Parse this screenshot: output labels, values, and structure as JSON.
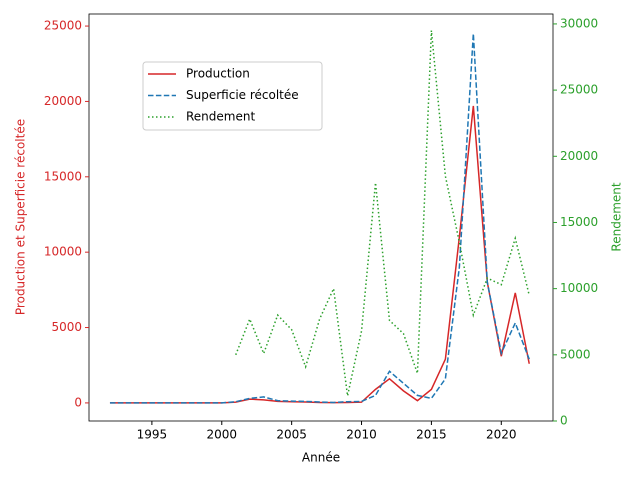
{
  "chart_data": {
    "type": "line",
    "xlabel": "Année",
    "ylabel": "Production et Superficie récoltée",
    "y2label": "Rendement",
    "ycolor": "#d62728",
    "y2color": "#2ca02c",
    "x": [
      1992,
      1993,
      1994,
      1995,
      1996,
      1997,
      1998,
      1999,
      2000,
      2001,
      2002,
      2003,
      2004,
      2005,
      2006,
      2007,
      2008,
      2009,
      2010,
      2011,
      2012,
      2013,
      2014,
      2015,
      2016,
      2017,
      2018,
      2019,
      2020,
      2021,
      2022
    ],
    "series": [
      {
        "name": "Production",
        "color": "#d62728",
        "linestyle": "solid",
        "axis": "y",
        "values": [
          0,
          0,
          0,
          0,
          0,
          0,
          0,
          0,
          0,
          50,
          250,
          200,
          100,
          80,
          60,
          30,
          20,
          30,
          50,
          900,
          1600,
          800,
          150,
          900,
          2900,
          11000,
          19700,
          8000,
          3100,
          7300,
          2600
        ]
      },
      {
        "name": "Superficie récoltée",
        "color": "#1f77b4",
        "linestyle": "dashed",
        "axis": "y",
        "values": [
          0,
          0,
          0,
          0,
          0,
          0,
          0,
          0,
          0,
          80,
          300,
          400,
          150,
          120,
          100,
          60,
          30,
          80,
          100,
          500,
          2100,
          1300,
          500,
          300,
          1600,
          9000,
          24500,
          8000,
          3300,
          5300,
          2900
        ]
      },
      {
        "name": "Rendement",
        "color": "#2ca02c",
        "linestyle": "dotted",
        "axis": "y2",
        "values": [
          null,
          null,
          null,
          null,
          null,
          null,
          null,
          null,
          null,
          5000,
          7700,
          5100,
          8000,
          6900,
          4100,
          7700,
          10000,
          1900,
          6800,
          18000,
          7600,
          6600,
          3600,
          29500,
          18500,
          13500,
          8000,
          10800,
          10300,
          13800,
          9500
        ]
      }
    ],
    "xlim": [
      1990.5,
      2023.7
    ],
    "xticks": [
      1995,
      2000,
      2005,
      2010,
      2015,
      2020
    ],
    "ylim": [
      -1200,
      25800
    ],
    "yticks": [
      0,
      5000,
      10000,
      15000,
      20000,
      25000
    ],
    "y2lim": [
      0,
      30750
    ],
    "y2ticks": [
      0,
      5000,
      10000,
      15000,
      20000,
      25000,
      30000
    ],
    "legend": "upper left"
  }
}
